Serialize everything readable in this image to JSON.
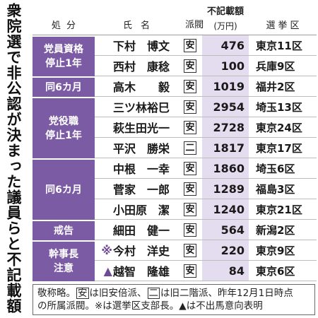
{
  "chart_data": {
    "type": "table",
    "title": "衆院選で非公認が決まった議員らと不記載額",
    "columns": {
      "punishment": "処分",
      "name": "氏名",
      "faction": "派閥",
      "amount": "不記載額",
      "amount_unit": "(万円)",
      "district": "選挙区"
    },
    "groups": [
      {
        "punishment": [
          "党員資格",
          "停止1年"
        ],
        "rows": [
          {
            "name": "下村　博文",
            "faction": "安",
            "amount": 476,
            "district": "東京11区"
          },
          {
            "name": "西村　康稔",
            "faction": "安",
            "amount": 100,
            "district": "兵庫9区"
          }
        ]
      },
      {
        "punishment": [
          "同6カ月"
        ],
        "rows": [
          {
            "name": "高木　　毅",
            "faction": "安",
            "amount": 1019,
            "district": "福井2区"
          }
        ]
      },
      {
        "punishment": [
          "党役職",
          "停止1年"
        ],
        "rows": [
          {
            "name": "三ツ林裕巳",
            "faction": "安",
            "amount": 2954,
            "district": "埼玉13区"
          },
          {
            "name": "萩生田光一",
            "faction": "安",
            "amount": 2728,
            "district": "東京24区"
          },
          {
            "name": "平沢　勝栄",
            "faction": "二",
            "amount": 1817,
            "district": "東京17区"
          }
        ]
      },
      {
        "punishment": [
          "同6カ月"
        ],
        "rows": [
          {
            "name": "中根　一幸",
            "faction": "安",
            "amount": 1860,
            "district": "埼玉6区"
          },
          {
            "name": "菅家　一郎",
            "faction": "安",
            "amount": 1289,
            "district": "福島3区"
          },
          {
            "name": "小田原　潔",
            "faction": "安",
            "amount": 1240,
            "district": "東京21区"
          }
        ]
      },
      {
        "punishment": [
          "戒告"
        ],
        "rows": [
          {
            "name": "細田　健一",
            "faction": "安",
            "amount": 564,
            "district": "新潟2区"
          }
        ]
      },
      {
        "punishment": [
          "幹事長",
          "注意"
        ],
        "rows": [
          {
            "mark": "※",
            "name": "今村　洋史",
            "faction": "安",
            "amount": 220,
            "district": "東京9区"
          },
          {
            "mark": "▲",
            "name": "越智　隆雄",
            "faction": "安",
            "amount": 84,
            "district": "東京6区"
          }
        ]
      }
    ]
  },
  "footnote": {
    "lines": [
      [
        {
          "text": "敬称略。"
        },
        {
          "text": "安",
          "boxed": true
        },
        {
          "text": "は旧安倍派、"
        },
        {
          "text": "二",
          "boxed": true
        },
        {
          "text": "は旧二階派、昨年12月1日時点"
        }
      ],
      [
        {
          "text": "の所属派閥。※は選挙区支部長。▲は不出馬意向表明"
        }
      ]
    ]
  },
  "colors": {
    "punishment_bg": "#7b5ba3",
    "amount_bg": "#e4dcef",
    "mark": "#6d4c96"
  }
}
